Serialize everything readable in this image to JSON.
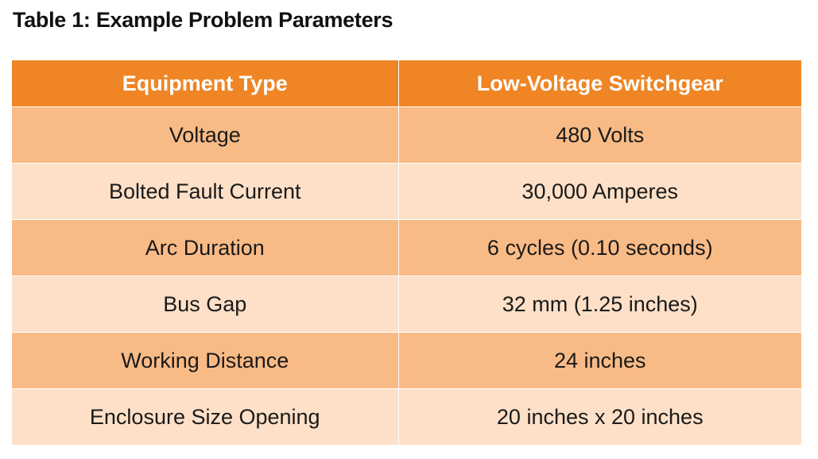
{
  "title": "Table 1: Example Problem Parameters",
  "table": {
    "headers": [
      "Equipment Type",
      "Low-Voltage Switchgear"
    ],
    "rows": [
      [
        "Voltage",
        "480 Volts"
      ],
      [
        "Bolted Fault Current",
        "30,000 Amperes"
      ],
      [
        "Arc Duration",
        "6 cycles (0.10 seconds)"
      ],
      [
        "Bus Gap",
        "32 mm (1.25 inches)"
      ],
      [
        "Working Distance",
        "24 inches"
      ],
      [
        "Enclosure Size Opening",
        "20 inches x 20 inches"
      ]
    ]
  },
  "colors": {
    "header_bg": "#ef8524",
    "header_text": "#ffffff",
    "row_dark": "#f9bb86",
    "row_light": "#fde0c7"
  }
}
